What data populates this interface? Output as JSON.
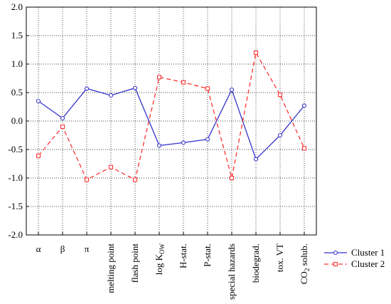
{
  "chart_data": {
    "type": "line",
    "categories": [
      "α",
      "β",
      "π",
      "melting point",
      "flash point",
      "log K",
      "H-stat.",
      "P-stat.",
      "special hazards",
      "biodegrad.",
      "tox. VT",
      "CO solub."
    ],
    "category_subscripts": [
      "",
      "",
      "",
      "",
      "",
      "OW",
      "",
      "",
      "",
      "",
      "",
      ""
    ],
    "category_suffixes": [
      "",
      "",
      "",
      "",
      "",
      "",
      "",
      "",
      "",
      "",
      "",
      " solub."
    ],
    "ylim": [
      -2.0,
      2.0
    ],
    "yticks": [
      "2.0",
      "1.5",
      "1.0",
      "0.5",
      "0.0",
      "-0.5",
      "-1.0",
      "-1.5",
      "-2.0"
    ],
    "ytick_values": [
      2.0,
      1.5,
      1.0,
      0.5,
      0.0,
      -0.5,
      -1.0,
      -1.5,
      -2.0
    ],
    "grid": true,
    "legend_position": "bottom-right",
    "series": [
      {
        "name": "Cluster 1",
        "color": "#3333cc",
        "line_style": "solid",
        "marker": "circle",
        "values": [
          0.35,
          0.05,
          0.57,
          0.45,
          0.58,
          -0.43,
          -0.38,
          -0.32,
          0.55,
          -0.67,
          -0.25,
          0.27
        ]
      },
      {
        "name": "Cluster 2",
        "color": "#ff3333",
        "line_style": "dashed",
        "marker": "square",
        "values": [
          -0.61,
          -0.1,
          -1.03,
          -0.81,
          -1.03,
          0.77,
          0.68,
          0.57,
          -1.0,
          1.2,
          0.46,
          -0.48
        ]
      }
    ]
  }
}
